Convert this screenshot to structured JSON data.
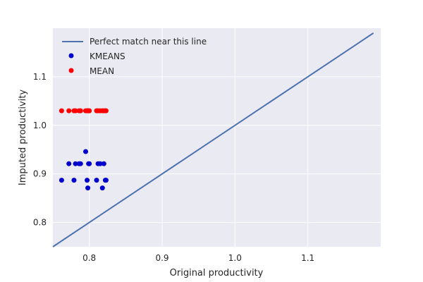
{
  "chart_data": {
    "type": "scatter",
    "xlabel": "Original productivity",
    "ylabel": "Imputed productivity",
    "xlim": [
      0.75,
      1.2
    ],
    "ylim": [
      0.75,
      1.2
    ],
    "xticks": [
      "0.8",
      "0.9",
      "1.0",
      "1.1"
    ],
    "yticks": [
      "0.8",
      "0.9",
      "1.0",
      "1.1"
    ],
    "grid": true,
    "legend_position": "top-left",
    "reference_line": {
      "name": "Perfect match near this line",
      "color": "#4C72B0",
      "x": [
        0.75,
        1.19
      ],
      "y": [
        0.75,
        1.19
      ]
    },
    "series": [
      {
        "name": "KMEANS",
        "color": "#0000cc",
        "points": [
          [
            0.762,
            0.887
          ],
          [
            0.772,
            0.921
          ],
          [
            0.779,
            0.887
          ],
          [
            0.781,
            0.921
          ],
          [
            0.786,
            0.921
          ],
          [
            0.788,
            0.921
          ],
          [
            0.795,
            0.946
          ],
          [
            0.797,
            0.887
          ],
          [
            0.798,
            0.871
          ],
          [
            0.799,
            0.921
          ],
          [
            0.8,
            0.921
          ],
          [
            0.81,
            0.887
          ],
          [
            0.812,
            0.921
          ],
          [
            0.815,
            0.921
          ],
          [
            0.818,
            0.871
          ],
          [
            0.82,
            0.921
          ],
          [
            0.822,
            0.887
          ],
          [
            0.823,
            0.887
          ]
        ]
      },
      {
        "name": "MEAN",
        "color": "#ff0000",
        "points": [
          [
            0.762,
            1.03
          ],
          [
            0.772,
            1.03
          ],
          [
            0.779,
            1.03
          ],
          [
            0.781,
            1.03
          ],
          [
            0.786,
            1.03
          ],
          [
            0.788,
            1.03
          ],
          [
            0.795,
            1.03
          ],
          [
            0.797,
            1.03
          ],
          [
            0.798,
            1.03
          ],
          [
            0.799,
            1.03
          ],
          [
            0.8,
            1.03
          ],
          [
            0.81,
            1.03
          ],
          [
            0.812,
            1.03
          ],
          [
            0.815,
            1.03
          ],
          [
            0.818,
            1.03
          ],
          [
            0.82,
            1.03
          ],
          [
            0.822,
            1.03
          ],
          [
            0.823,
            1.03
          ]
        ]
      }
    ]
  }
}
